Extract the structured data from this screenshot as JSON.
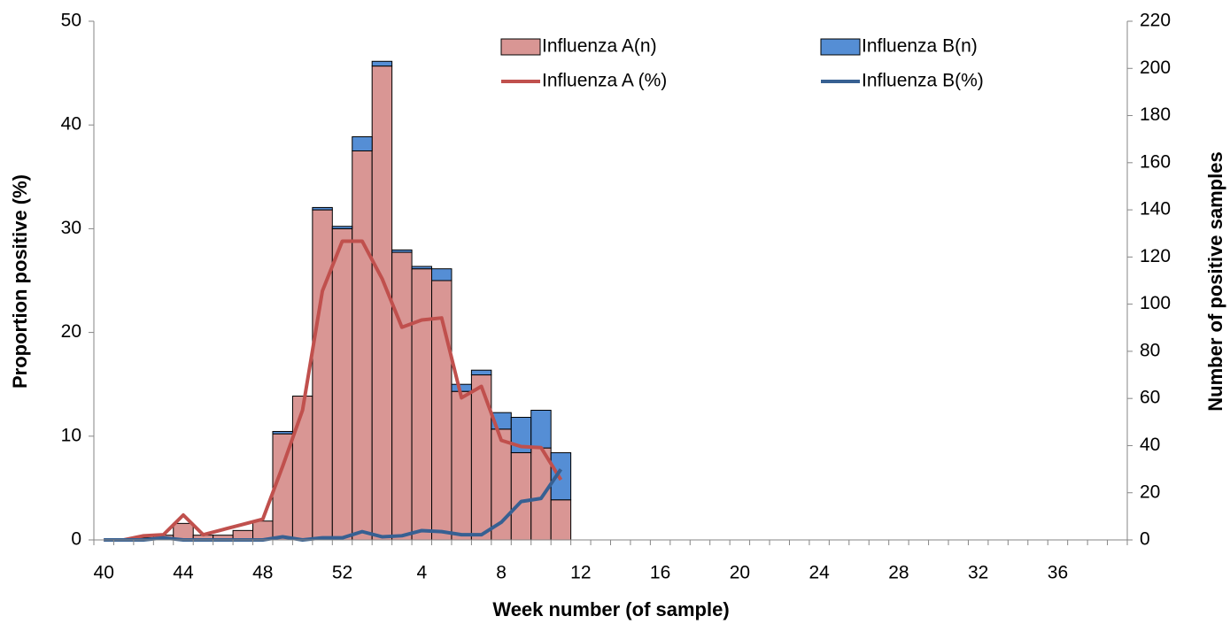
{
  "chart_data": {
    "type": "bar",
    "x_label": "Week number (of sample)",
    "y_label": "Proportion  positive (%)",
    "y2_label": "Number of positive samples",
    "categories": [
      40,
      null,
      null,
      null,
      44,
      null,
      null,
      null,
      48,
      null,
      null,
      null,
      52,
      null,
      null,
      null,
      4,
      null,
      null,
      null,
      8,
      null,
      null,
      null,
      12,
      null,
      null,
      null,
      16,
      null,
      null,
      null,
      20,
      null,
      null,
      null,
      24,
      null,
      null,
      null,
      28,
      null,
      null,
      null,
      32,
      null,
      null,
      null,
      36,
      null,
      null,
      null
    ],
    "stacked": true,
    "ylim": [
      0,
      50
    ],
    "yticks": [
      0,
      10,
      20,
      30,
      40,
      50
    ],
    "y2lim": [
      0,
      220
    ],
    "y2ticks": [
      0,
      20,
      40,
      60,
      80,
      100,
      120,
      140,
      160,
      180,
      200,
      220
    ],
    "grid": false,
    "series": [
      {
        "name": "Influenza A(n)",
        "kind": "bar",
        "axis": "y2",
        "color": "#d99694",
        "values": [
          0,
          0,
          1,
          2,
          7,
          2,
          2,
          4,
          8,
          45,
          61,
          140,
          132,
          165,
          201,
          122,
          115,
          110,
          63,
          70,
          47,
          37,
          39,
          17,
          null,
          null,
          null,
          null,
          null,
          null,
          null,
          null,
          null,
          null,
          null,
          null,
          null,
          null,
          null,
          null,
          null,
          null,
          null,
          null,
          null,
          null,
          null,
          null,
          null,
          null,
          null,
          null
        ]
      },
      {
        "name": "Influenza B(n)",
        "kind": "bar",
        "axis": "y2",
        "color": "#558ed5",
        "values": [
          0,
          0,
          0,
          0,
          0,
          0,
          0,
          0,
          0,
          1,
          0,
          1,
          1,
          6,
          2,
          1,
          1,
          5,
          3,
          2,
          7,
          15,
          16,
          20,
          null,
          null,
          null,
          null,
          null,
          null,
          null,
          null,
          null,
          null,
          null,
          null,
          null,
          null,
          null,
          null,
          null,
          null,
          null,
          null,
          null,
          null,
          null,
          null,
          null,
          null,
          null,
          null
        ]
      },
      {
        "name": "Influenza A (%)",
        "kind": "line",
        "color": "#c0504d",
        "values": [
          0,
          0,
          0.4,
          0.5,
          2.4,
          0.5,
          1.0,
          1.5,
          2.0,
          7.1,
          12.5,
          24,
          28.8,
          28.8,
          25.2,
          20.5,
          21.2,
          21.4,
          13.7,
          14.8,
          9.6,
          9.0,
          8.9,
          5.8,
          null,
          null,
          null,
          null,
          null,
          null,
          null,
          null,
          null,
          null,
          null,
          null,
          null,
          null,
          null,
          null,
          null,
          null,
          null,
          null,
          null,
          null,
          null,
          null,
          null,
          null,
          null,
          null
        ]
      },
      {
        "name": "Influenza B(%)",
        "kind": "line",
        "color": "#376092",
        "values": [
          0,
          0,
          0,
          0.2,
          0,
          0,
          0,
          0,
          0,
          0.3,
          0,
          0.2,
          0.2,
          0.8,
          0.3,
          0.4,
          0.9,
          0.8,
          0.5,
          0.5,
          1.7,
          3.7,
          4.0,
          6.8,
          null,
          null,
          null,
          null,
          null,
          null,
          null,
          null,
          null,
          null,
          null,
          null,
          null,
          null,
          null,
          null,
          null,
          null,
          null,
          null,
          null,
          null,
          null,
          null,
          null,
          null,
          null,
          null
        ]
      }
    ]
  }
}
